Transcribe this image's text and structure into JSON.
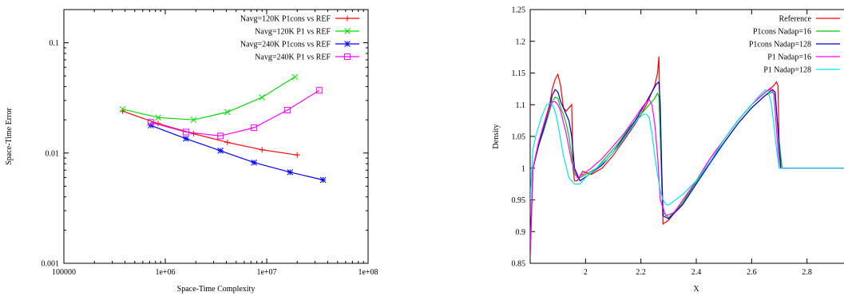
{
  "chart_data": [
    {
      "type": "line",
      "title": "",
      "xlabel": "Space-Time Complexity",
      "ylabel": "Space-Time Error",
      "xscale": "log",
      "yscale": "log",
      "xlim": [
        100000,
        100000000
      ],
      "ylim": [
        0.001,
        0.2
      ],
      "xticks": [
        100000,
        1000000,
        10000000,
        100000000
      ],
      "xtick_labels": [
        "100000",
        "1e+06",
        "1e+07",
        "1e+08"
      ],
      "yticks": [
        0.001,
        0.01,
        0.1
      ],
      "ytick_labels": [
        "0.001",
        "0.01",
        "0.1"
      ],
      "grid": false,
      "legend_position": "top-right",
      "series": [
        {
          "name": "Navg=120K P1cons vs REF",
          "color": "#ff0000",
          "marker": "plus",
          "x": [
            380000,
            850000,
            1900000,
            4100000,
            9000000,
            20000000
          ],
          "y": [
            0.024,
            0.0185,
            0.015,
            0.0125,
            0.0107,
            0.0096
          ]
        },
        {
          "name": "Navg=120K P1 vs REF",
          "color": "#00dd00",
          "marker": "cross",
          "x": [
            380000,
            850000,
            1900000,
            4100000,
            9000000,
            19000000
          ],
          "y": [
            0.025,
            0.021,
            0.02,
            0.0235,
            0.032,
            0.049
          ]
        },
        {
          "name": "Navg=240K P1cons vs REF",
          "color": "#0000ff",
          "marker": "star",
          "x": [
            720000,
            1600000,
            3500000,
            7500000,
            17000000,
            36000000
          ],
          "y": [
            0.0178,
            0.0135,
            0.0105,
            0.0082,
            0.0067,
            0.0057
          ]
        },
        {
          "name": "Navg=240K P1 vs REF",
          "color": "#ff00ff",
          "marker": "square",
          "x": [
            720000,
            1600000,
            3500000,
            7500000,
            16000000,
            33000000
          ],
          "y": [
            0.019,
            0.0155,
            0.0143,
            0.017,
            0.0245,
            0.037
          ]
        }
      ]
    },
    {
      "type": "line",
      "title": "",
      "xlabel": "X",
      "ylabel": "Density",
      "xlim": [
        1.8,
        3.0
      ],
      "ylim": [
        0.85,
        1.25
      ],
      "xticks": [
        2,
        2.2,
        2.4,
        2.6,
        2.8
      ],
      "xtick_labels": [
        "2",
        "2.2",
        "2.4",
        "2.6",
        "2.8"
      ],
      "yticks": [
        0.85,
        0.9,
        0.95,
        1,
        1.05,
        1.1,
        1.15,
        1.2,
        1.25
      ],
      "ytick_labels": [
        "0.85",
        "0.9",
        "0.95",
        "1",
        "1.05",
        "1.1",
        "1.15",
        "1.2",
        "1.25"
      ],
      "grid": false,
      "legend_position": "top-right",
      "series": [
        {
          "name": "Reference",
          "color": "#ff0000",
          "x": [
            1.8,
            1.81,
            1.83,
            1.85,
            1.87,
            1.88,
            1.89,
            1.9,
            1.91,
            1.92,
            1.93,
            1.94,
            1.95,
            1.955,
            1.96,
            1.97,
            1.99,
            2.02,
            2.06,
            2.1,
            2.14,
            2.18,
            2.2,
            2.22,
            2.24,
            2.25,
            2.26,
            2.265,
            2.27,
            2.28,
            2.3,
            2.35,
            2.4,
            2.45,
            2.5,
            2.55,
            2.6,
            2.65,
            2.68,
            2.69,
            2.695,
            2.7,
            2.71,
            3.0
          ],
          "y": [
            0.86,
            1.0,
            1.04,
            1.07,
            1.1,
            1.125,
            1.14,
            1.148,
            1.13,
            1.095,
            1.09,
            1.095,
            1.1,
            1.0,
            0.98,
            0.98,
            0.995,
            0.99,
            1.0,
            1.02,
            1.045,
            1.07,
            1.085,
            1.1,
            1.12,
            1.13,
            1.15,
            1.176,
            1.05,
            0.912,
            0.918,
            0.945,
            0.98,
            1.015,
            1.045,
            1.075,
            1.1,
            1.12,
            1.13,
            1.136,
            1.13,
            1.03,
            1.0,
            1.0
          ]
        },
        {
          "name": "P1cons Nadap=16",
          "color": "#00cc00",
          "x": [
            1.8,
            1.81,
            1.83,
            1.85,
            1.87,
            1.88,
            1.89,
            1.9,
            1.91,
            1.92,
            1.93,
            1.94,
            1.95,
            1.96,
            1.98,
            2.0,
            2.04,
            2.08,
            2.12,
            2.16,
            2.2,
            2.23,
            2.25,
            2.26,
            2.265,
            2.27,
            2.28,
            2.3,
            2.35,
            2.4,
            2.45,
            2.5,
            2.55,
            2.6,
            2.65,
            2.675,
            2.685,
            2.695,
            2.71,
            3.0
          ],
          "y": [
            0.87,
            1.0,
            1.035,
            1.06,
            1.09,
            1.105,
            1.112,
            1.11,
            1.095,
            1.085,
            1.07,
            1.05,
            1.02,
            0.99,
            0.985,
            0.99,
            1.0,
            1.02,
            1.04,
            1.065,
            1.085,
            1.1,
            1.11,
            1.118,
            1.112,
            1.05,
            0.93,
            0.922,
            0.945,
            0.978,
            1.01,
            1.04,
            1.07,
            1.095,
            1.115,
            1.12,
            1.115,
            1.06,
            1.0,
            1.0
          ]
        },
        {
          "name": "P1cons Nadap=128",
          "color": "#0000cc",
          "x": [
            1.8,
            1.81,
            1.83,
            1.85,
            1.87,
            1.88,
            1.89,
            1.9,
            1.91,
            1.92,
            1.93,
            1.94,
            1.95,
            1.96,
            1.98,
            2.02,
            2.06,
            2.1,
            2.14,
            2.18,
            2.2,
            2.22,
            2.24,
            2.255,
            2.265,
            2.27,
            2.275,
            2.28,
            2.3,
            2.35,
            2.4,
            2.45,
            2.5,
            2.55,
            2.6,
            2.65,
            2.675,
            2.685,
            2.695,
            2.705,
            3.0
          ],
          "y": [
            0.87,
            1.0,
            1.035,
            1.065,
            1.095,
            1.115,
            1.124,
            1.12,
            1.105,
            1.095,
            1.085,
            1.075,
            1.05,
            1.0,
            0.98,
            0.992,
            1.005,
            1.025,
            1.05,
            1.075,
            1.09,
            1.105,
            1.12,
            1.132,
            1.136,
            1.1,
            1.0,
            0.925,
            0.92,
            0.942,
            0.975,
            1.008,
            1.04,
            1.07,
            1.095,
            1.115,
            1.124,
            1.12,
            1.06,
            1.0,
            1.0
          ]
        },
        {
          "name": "P1 Nadap=16",
          "color": "#ff00ff",
          "x": [
            1.8,
            1.81,
            1.83,
            1.85,
            1.87,
            1.88,
            1.89,
            1.9,
            1.91,
            1.93,
            1.95,
            1.97,
            1.99,
            2.02,
            2.06,
            2.1,
            2.14,
            2.18,
            2.2,
            2.22,
            2.23,
            2.24,
            2.25,
            2.26,
            2.27,
            2.29,
            2.32,
            2.36,
            2.4,
            2.45,
            2.5,
            2.55,
            2.6,
            2.65,
            2.67,
            2.68,
            2.69,
            2.7,
            3.0
          ],
          "y": [
            0.87,
            1.0,
            1.04,
            1.07,
            1.095,
            1.104,
            1.105,
            1.1,
            1.09,
            1.055,
            1.01,
            0.985,
            0.99,
            1.0,
            1.015,
            1.035,
            1.055,
            1.08,
            1.093,
            1.105,
            1.108,
            1.1,
            1.07,
            1.02,
            0.95,
            0.925,
            0.93,
            0.955,
            0.98,
            1.015,
            1.045,
            1.075,
            1.1,
            1.12,
            1.125,
            1.118,
            1.06,
            1.0,
            1.0
          ]
        },
        {
          "name": "P1 Nadap=128",
          "color": "#00e5ee",
          "x": [
            1.8,
            1.81,
            1.82,
            1.84,
            1.86,
            1.87,
            1.88,
            1.89,
            1.9,
            1.92,
            1.94,
            1.96,
            1.98,
            2.0,
            2.04,
            2.08,
            2.12,
            2.16,
            2.19,
            2.21,
            2.22,
            2.23,
            2.24,
            2.25,
            2.26,
            2.27,
            2.28,
            2.29,
            2.3,
            2.35,
            2.4,
            2.45,
            2.5,
            2.55,
            2.6,
            2.63,
            2.65,
            2.66,
            2.67,
            2.68,
            2.69,
            2.7,
            3.0
          ],
          "y": [
            0.95,
            1.03,
            1.05,
            1.08,
            1.1,
            1.102,
            1.1,
            1.09,
            1.07,
            1.02,
            0.985,
            0.975,
            0.975,
            0.985,
            1.0,
            1.015,
            1.035,
            1.06,
            1.078,
            1.085,
            1.085,
            1.08,
            1.055,
            1.02,
            0.99,
            0.965,
            0.95,
            0.943,
            0.942,
            0.958,
            0.98,
            1.01,
            1.045,
            1.075,
            1.1,
            1.115,
            1.124,
            1.12,
            1.105,
            1.07,
            1.03,
            1.0,
            1.0
          ]
        }
      ]
    }
  ]
}
